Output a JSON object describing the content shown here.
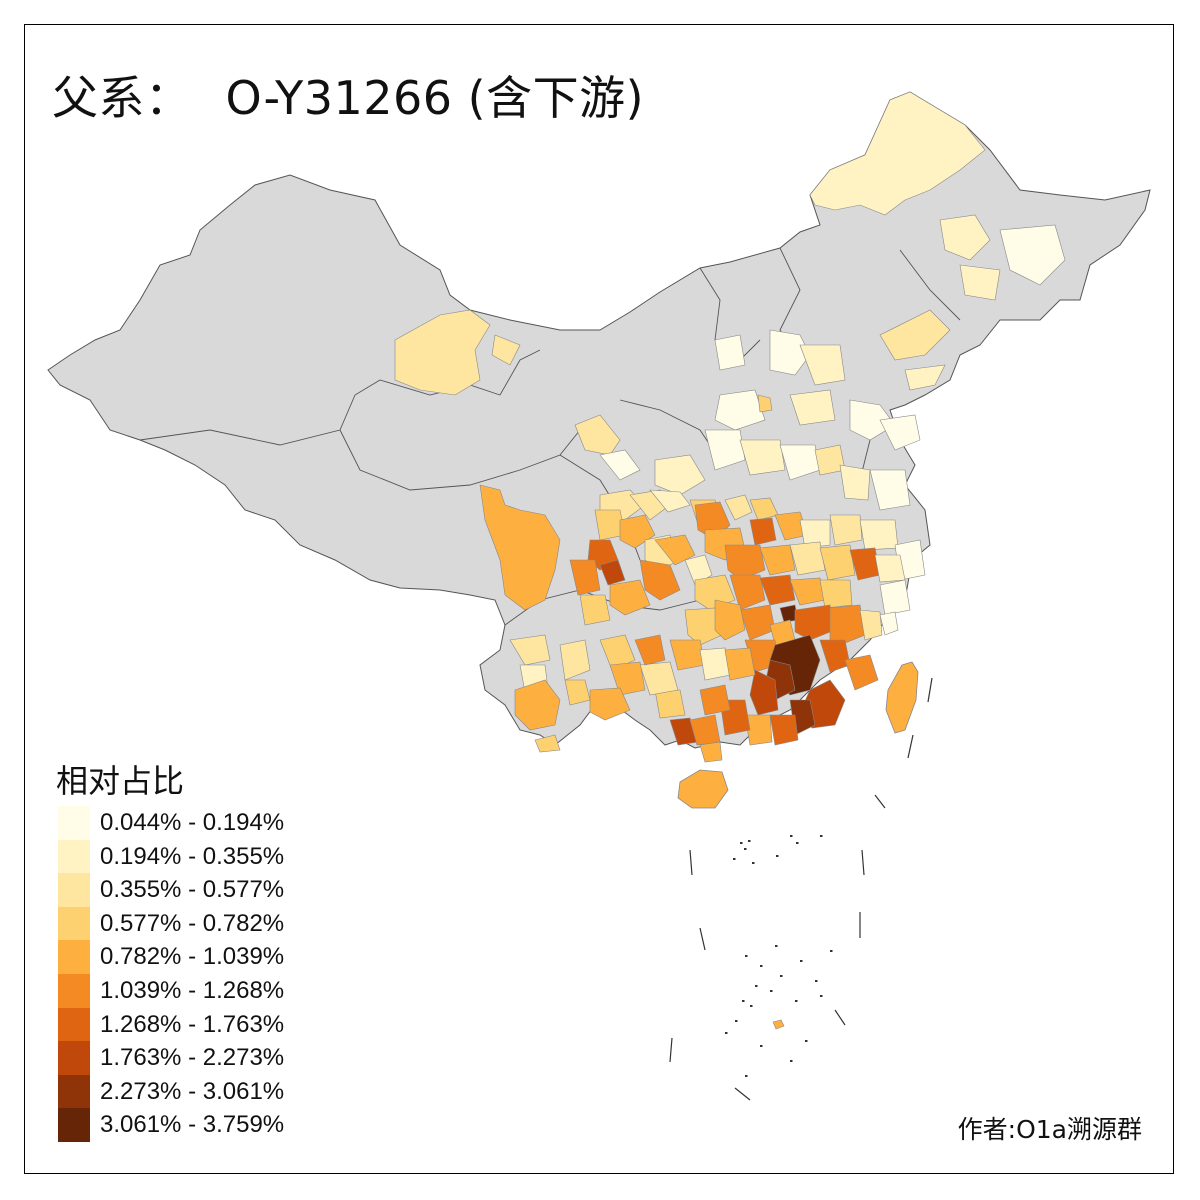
{
  "title": {
    "prefix": "父系：",
    "haplogroup": "O-Y31266 (含下游)"
  },
  "legend": {
    "title": "相对占比",
    "classes": [
      {
        "label": "0.044% - 0.194%",
        "color": "#fffce8"
      },
      {
        "label": "0.194% - 0.355%",
        "color": "#fff3c4"
      },
      {
        "label": "0.355% - 0.577%",
        "color": "#fee6a0"
      },
      {
        "label": "0.577% - 0.782%",
        "color": "#fed170"
      },
      {
        "label": "0.782% - 1.039%",
        "color": "#fdb040"
      },
      {
        "label": "1.039% - 1.268%",
        "color": "#f48a24"
      },
      {
        "label": "1.268% - 1.763%",
        "color": "#e06513"
      },
      {
        "label": "1.763% - 2.273%",
        "color": "#c0480b"
      },
      {
        "label": "2.273% - 3.061%",
        "color": "#8f3309"
      },
      {
        "label": "3.061% - 3.759%",
        "color": "#662507"
      }
    ]
  },
  "no_data_color": "#d9d9d9",
  "author": "作者:O1a溯源群"
}
